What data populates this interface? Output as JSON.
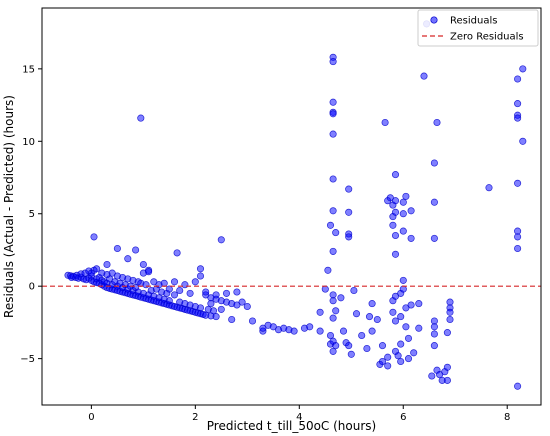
{
  "chart_data": {
    "type": "scatter",
    "title": "",
    "xlabel": "Predicted t_till_50oC (hours)",
    "ylabel": "Residuals (Actual - Predicted) (hours)",
    "xlim": [
      -0.95,
      8.65
    ],
    "ylim": [
      -8.2,
      19.2
    ],
    "x_ticks": [
      0,
      2,
      4,
      6,
      8
    ],
    "y_ticks": [
      -5,
      0,
      5,
      10,
      15
    ],
    "grid": false,
    "legend_position": "top-right",
    "reference_lines": [
      {
        "name": "Zero Residuals",
        "y": 0,
        "color": "#d62728",
        "style": "dashed"
      }
    ],
    "series": [
      {
        "name": "Residuals",
        "color": "#0000ff",
        "points": [
          [
            -0.45,
            0.75
          ],
          [
            -0.4,
            0.72
          ],
          [
            -0.38,
            0.6
          ],
          [
            -0.35,
            0.68
          ],
          [
            -0.3,
            0.6
          ],
          [
            -0.28,
            0.75
          ],
          [
            -0.25,
            0.55
          ],
          [
            -0.2,
            0.62
          ],
          [
            -0.2,
            0.85
          ],
          [
            -0.15,
            0.5
          ],
          [
            -0.12,
            0.9
          ],
          [
            -0.1,
            0.45
          ],
          [
            -0.05,
            0.55
          ],
          [
            -0.05,
            1.05
          ],
          [
            0.0,
            0.4
          ],
          [
            0.0,
            0.7
          ],
          [
            0.05,
            0.3
          ],
          [
            0.05,
            1.1
          ],
          [
            0.1,
            0.25
          ],
          [
            0.1,
            0.5
          ],
          [
            0.15,
            0.2
          ],
          [
            0.15,
            0.6
          ],
          [
            0.2,
            0.1
          ],
          [
            0.2,
            0.4
          ],
          [
            0.25,
            0.0
          ],
          [
            0.25,
            0.3
          ],
          [
            0.3,
            -0.1
          ],
          [
            0.3,
            0.2
          ],
          [
            0.35,
            -0.15
          ],
          [
            0.35,
            0.5
          ],
          [
            0.4,
            -0.2
          ],
          [
            0.4,
            0.1
          ],
          [
            0.45,
            -0.25
          ],
          [
            0.45,
            0.3
          ],
          [
            0.5,
            -0.3
          ],
          [
            0.5,
            0.0
          ],
          [
            0.55,
            -0.35
          ],
          [
            0.55,
            0.2
          ],
          [
            0.6,
            -0.4
          ],
          [
            0.6,
            -0.1
          ],
          [
            0.65,
            -0.45
          ],
          [
            0.65,
            0.1
          ],
          [
            0.7,
            -0.5
          ],
          [
            0.7,
            -0.2
          ],
          [
            0.75,
            -0.55
          ],
          [
            0.75,
            0.0
          ],
          [
            0.8,
            -0.6
          ],
          [
            0.8,
            -0.3
          ],
          [
            0.85,
            -0.65
          ],
          [
            0.85,
            -0.1
          ],
          [
            0.9,
            -0.7
          ],
          [
            0.9,
            -0.4
          ],
          [
            0.95,
            -0.75
          ],
          [
            0.95,
            0.2
          ],
          [
            1.0,
            -0.8
          ],
          [
            1.0,
            -0.5
          ],
          [
            1.05,
            -0.85
          ],
          [
            1.05,
            0.1
          ],
          [
            1.1,
            -0.9
          ],
          [
            1.1,
            -0.6
          ],
          [
            1.15,
            -0.95
          ],
          [
            1.15,
            -0.3
          ],
          [
            1.2,
            -1.0
          ],
          [
            1.2,
            -0.7
          ],
          [
            1.25,
            -1.05
          ],
          [
            1.25,
            -0.2
          ],
          [
            1.3,
            -1.1
          ],
          [
            1.3,
            -0.8
          ],
          [
            1.35,
            -1.15
          ],
          [
            1.35,
            -0.4
          ],
          [
            1.4,
            -1.2
          ],
          [
            1.4,
            -0.9
          ],
          [
            1.45,
            -1.25
          ],
          [
            1.45,
            -0.5
          ],
          [
            1.5,
            -1.3
          ],
          [
            1.5,
            -1.0
          ],
          [
            1.55,
            -1.35
          ],
          [
            1.6,
            -1.4
          ],
          [
            1.6,
            -0.6
          ],
          [
            1.65,
            -1.45
          ],
          [
            1.7,
            -1.5
          ],
          [
            1.7,
            -1.1
          ],
          [
            1.75,
            -1.55
          ],
          [
            1.8,
            -1.6
          ],
          [
            1.8,
            -1.2
          ],
          [
            1.85,
            -1.65
          ],
          [
            1.9,
            -1.7
          ],
          [
            1.9,
            -1.3
          ],
          [
            1.95,
            -1.75
          ],
          [
            2.0,
            -1.8
          ],
          [
            2.0,
            -1.4
          ],
          [
            2.05,
            -1.85
          ],
          [
            2.1,
            -1.9
          ],
          [
            2.1,
            -1.5
          ],
          [
            2.15,
            -1.95
          ],
          [
            2.2,
            -2.0
          ],
          [
            2.25,
            -1.6
          ],
          [
            2.3,
            -2.05
          ],
          [
            2.35,
            -1.7
          ],
          [
            2.4,
            -2.1
          ],
          [
            0.0,
            0.9
          ],
          [
            0.1,
            1.2
          ],
          [
            0.2,
            0.9
          ],
          [
            0.3,
            0.8
          ],
          [
            0.4,
            0.9
          ],
          [
            0.5,
            0.7
          ],
          [
            0.6,
            0.6
          ],
          [
            0.7,
            0.5
          ],
          [
            0.8,
            0.4
          ],
          [
            0.9,
            0.3
          ],
          [
            1.0,
            0.9
          ],
          [
            1.1,
            1.1
          ],
          [
            1.2,
            0.3
          ],
          [
            1.3,
            0.1
          ],
          [
            1.4,
            0.2
          ],
          [
            1.5,
            -0.2
          ],
          [
            1.6,
            0.3
          ],
          [
            1.7,
            -0.3
          ],
          [
            1.8,
            0.1
          ],
          [
            1.9,
            -0.5
          ],
          [
            2.0,
            0.3
          ],
          [
            2.1,
            1.2
          ],
          [
            2.1,
            0.7
          ],
          [
            2.2,
            -0.6
          ],
          [
            2.3,
            -0.8
          ],
          [
            2.4,
            -0.9
          ],
          [
            2.5,
            -1.0
          ],
          [
            2.6,
            -1.1
          ],
          [
            2.7,
            -1.2
          ],
          [
            2.8,
            -1.3
          ],
          [
            0.05,
            3.4
          ],
          [
            0.95,
            11.6
          ],
          [
            0.5,
            2.6
          ],
          [
            0.85,
            2.5
          ],
          [
            1.65,
            2.3
          ],
          [
            2.5,
            3.2
          ],
          [
            1.0,
            1.5
          ],
          [
            0.3,
            1.5
          ],
          [
            0.7,
            1.9
          ],
          [
            1.1,
            1.0
          ],
          [
            2.4,
            -0.6
          ],
          [
            2.6,
            -0.5
          ],
          [
            2.8,
            -0.4
          ],
          [
            2.9,
            -1.1
          ],
          [
            3.0,
            -1.4
          ],
          [
            2.7,
            -2.3
          ],
          [
            3.1,
            -2.4
          ],
          [
            2.3,
            -1.2
          ],
          [
            2.2,
            -0.4
          ],
          [
            2.5,
            -1.6
          ],
          [
            3.3,
            -3.1
          ],
          [
            3.3,
            -2.9
          ],
          [
            3.4,
            -2.7
          ],
          [
            3.5,
            -2.8
          ],
          [
            3.6,
            -3.0
          ],
          [
            3.7,
            -2.9
          ],
          [
            3.8,
            -3.0
          ],
          [
            3.9,
            -3.1
          ],
          [
            4.1,
            -2.9
          ],
          [
            4.2,
            -2.8
          ],
          [
            4.4,
            -3.1
          ],
          [
            4.4,
            -1.8
          ],
          [
            4.5,
            -0.2
          ],
          [
            4.55,
            1.1
          ],
          [
            4.6,
            4.2
          ],
          [
            4.6,
            -3.4
          ],
          [
            4.6,
            -4.0
          ],
          [
            4.65,
            15.8
          ],
          [
            4.65,
            15.5
          ],
          [
            4.65,
            12.7
          ],
          [
            4.65,
            12.0
          ],
          [
            4.65,
            11.9
          ],
          [
            4.65,
            10.5
          ],
          [
            4.65,
            7.4
          ],
          [
            4.65,
            5.2
          ],
          [
            4.65,
            2.4
          ],
          [
            4.65,
            -0.6
          ],
          [
            4.65,
            -1.0
          ],
          [
            4.65,
            -2.2
          ],
          [
            4.65,
            -3.8
          ],
          [
            4.65,
            -4.5
          ],
          [
            4.7,
            -4.1
          ],
          [
            4.7,
            -1.7
          ],
          [
            4.7,
            3.7
          ],
          [
            4.8,
            -0.8
          ],
          [
            4.85,
            -3.1
          ],
          [
            4.9,
            -3.9
          ],
          [
            4.95,
            6.7
          ],
          [
            4.95,
            5.1
          ],
          [
            4.95,
            3.6
          ],
          [
            4.95,
            3.4
          ],
          [
            4.95,
            -4.1
          ],
          [
            5.0,
            -4.7
          ],
          [
            5.05,
            -0.3
          ],
          [
            5.1,
            -1.9
          ],
          [
            5.2,
            -3.4
          ],
          [
            5.3,
            -4.3
          ],
          [
            5.35,
            -2.1
          ],
          [
            5.4,
            -3.1
          ],
          [
            5.4,
            -1.2
          ],
          [
            5.5,
            -2.3
          ],
          [
            5.55,
            -5.4
          ],
          [
            5.6,
            -5.2
          ],
          [
            5.6,
            -4.1
          ],
          [
            5.7,
            -4.9
          ],
          [
            5.7,
            -5.5
          ],
          [
            5.65,
            11.3
          ],
          [
            5.7,
            5.9
          ],
          [
            5.75,
            6.1
          ],
          [
            5.8,
            5.6
          ],
          [
            5.8,
            4.8
          ],
          [
            5.8,
            4.2
          ],
          [
            5.8,
            -1.0
          ],
          [
            5.8,
            -1.8
          ],
          [
            5.85,
            7.7
          ],
          [
            5.85,
            5.9
          ],
          [
            5.85,
            5.1
          ],
          [
            5.85,
            3.5
          ],
          [
            5.85,
            2.2
          ],
          [
            5.85,
            -0.7
          ],
          [
            5.85,
            -2.4
          ],
          [
            5.85,
            -4.5
          ],
          [
            5.9,
            -4.8
          ],
          [
            5.95,
            -5.2
          ],
          [
            5.95,
            -4.0
          ],
          [
            5.95,
            -2.1
          ],
          [
            5.95,
            -0.5
          ],
          [
            6.0,
            -0.2
          ],
          [
            6.0,
            0.4
          ],
          [
            6.0,
            3.8
          ],
          [
            6.0,
            5.0
          ],
          [
            6.0,
            5.8
          ],
          [
            6.05,
            6.2
          ],
          [
            6.05,
            -1.5
          ],
          [
            6.05,
            -2.8
          ],
          [
            6.1,
            -3.6
          ],
          [
            6.1,
            -5.0
          ],
          [
            6.15,
            5.2
          ],
          [
            6.15,
            3.3
          ],
          [
            6.15,
            -1.3
          ],
          [
            6.2,
            -4.6
          ],
          [
            6.3,
            -2.9
          ],
          [
            6.3,
            -1.2
          ],
          [
            6.4,
            14.5
          ],
          [
            6.45,
            18.1
          ],
          [
            6.55,
            -6.2
          ],
          [
            6.6,
            8.5
          ],
          [
            6.6,
            5.8
          ],
          [
            6.6,
            3.3
          ],
          [
            6.6,
            -2.4
          ],
          [
            6.6,
            -2.8
          ],
          [
            6.6,
            -3.3
          ],
          [
            6.6,
            -4.1
          ],
          [
            6.65,
            11.3
          ],
          [
            6.65,
            -5.8
          ],
          [
            6.7,
            -6.1
          ],
          [
            6.75,
            -6.5
          ],
          [
            6.8,
            -5.9
          ],
          [
            6.85,
            -6.5
          ],
          [
            6.85,
            -5.6
          ],
          [
            6.9,
            -1.1
          ],
          [
            6.9,
            -1.5
          ],
          [
            6.9,
            -1.8
          ],
          [
            6.9,
            -2.3
          ],
          [
            6.85,
            -3.2
          ],
          [
            7.65,
            6.8
          ],
          [
            8.2,
            14.3
          ],
          [
            8.2,
            12.6
          ],
          [
            8.2,
            11.8
          ],
          [
            8.2,
            11.6
          ],
          [
            8.2,
            7.1
          ],
          [
            8.2,
            3.8
          ],
          [
            8.2,
            3.4
          ],
          [
            8.2,
            2.6
          ],
          [
            8.2,
            -6.9
          ],
          [
            8.3,
            15.0
          ],
          [
            8.3,
            10.0
          ]
        ]
      }
    ]
  }
}
